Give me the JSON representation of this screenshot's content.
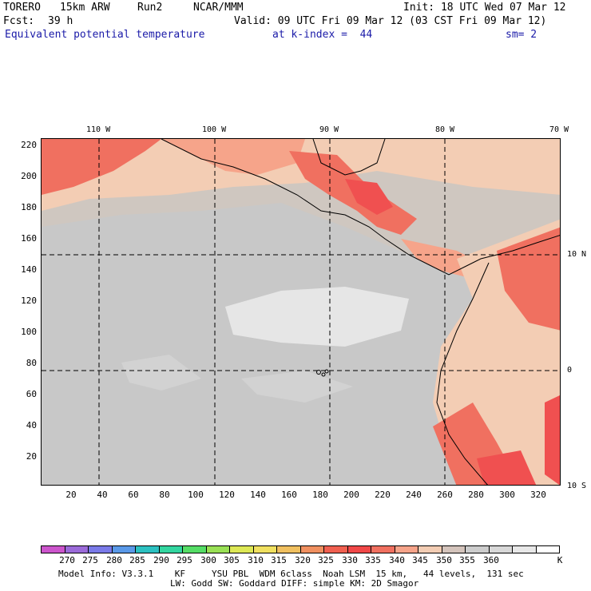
{
  "header": {
    "model": "TORERO",
    "resolution": "15km ARW",
    "run": "Run2",
    "org": "NCAR/MMM",
    "init": "Init: 18 UTC Wed 07 Mar 12",
    "fcst_label": "Fcst:",
    "fcst_value": "39 h",
    "valid": "Valid: 09 UTC Fri 09 Mar 12 (03 CST Fri 09 Mar 12)",
    "field": "Equivalent potential temperature",
    "level": "at k-index =  44",
    "smooth": "sm= 2"
  },
  "map": {
    "top_lon_labels": [
      "110 W",
      "100 W",
      "90 W",
      "80 W",
      "70 W"
    ],
    "right_lat_labels": [
      "10 N",
      "0",
      "10 S"
    ],
    "y_ticks": [
      "220",
      "200",
      "180",
      "160",
      "140",
      "120",
      "100",
      "80",
      "60",
      "40",
      "20"
    ],
    "x_ticks": [
      "20",
      "40",
      "60",
      "80",
      "100",
      "120",
      "140",
      "160",
      "180",
      "200",
      "220",
      "240",
      "260",
      "280",
      "300",
      "320"
    ],
    "background_color": "#c8c8c8",
    "ocean_colors": [
      "#c8c8c8",
      "#d2d2d2",
      "#e6e6e6",
      "#cfc7c0"
    ],
    "warm_colors": [
      "#f3cdb4",
      "#f6a48a",
      "#f07060",
      "#f05050"
    ],
    "grid_style": "dashed"
  },
  "legend": {
    "colors": [
      "#cc55cc",
      "#9b6bd9",
      "#7a7ae8",
      "#5a99e8",
      "#2cc1c1",
      "#33d6a0",
      "#55dd66",
      "#99e055",
      "#dde855",
      "#f0e060",
      "#f0c060",
      "#f09060",
      "#f06050",
      "#f04848",
      "#f07060",
      "#f6a48a",
      "#f3cdb4",
      "#d4c4bc",
      "#cdcdcd",
      "#d8d8d8",
      "#e8e8e8",
      "#ffffff"
    ],
    "labels": [
      "270",
      "275",
      "280",
      "285",
      "290",
      "295",
      "300",
      "305",
      "310",
      "315",
      "320",
      "325",
      "330",
      "335",
      "340",
      "345",
      "350",
      "355",
      "360",
      "K"
    ]
  },
  "footer": {
    "line1": "Model Info: V3.3.1    KF     YSU PBL  WDM 6class  Noah LSM  15 km,   44 levels,  131 sec",
    "line2": "LW: Godd SW: Goddard DIFF: simple KM: 2D Smagor"
  }
}
